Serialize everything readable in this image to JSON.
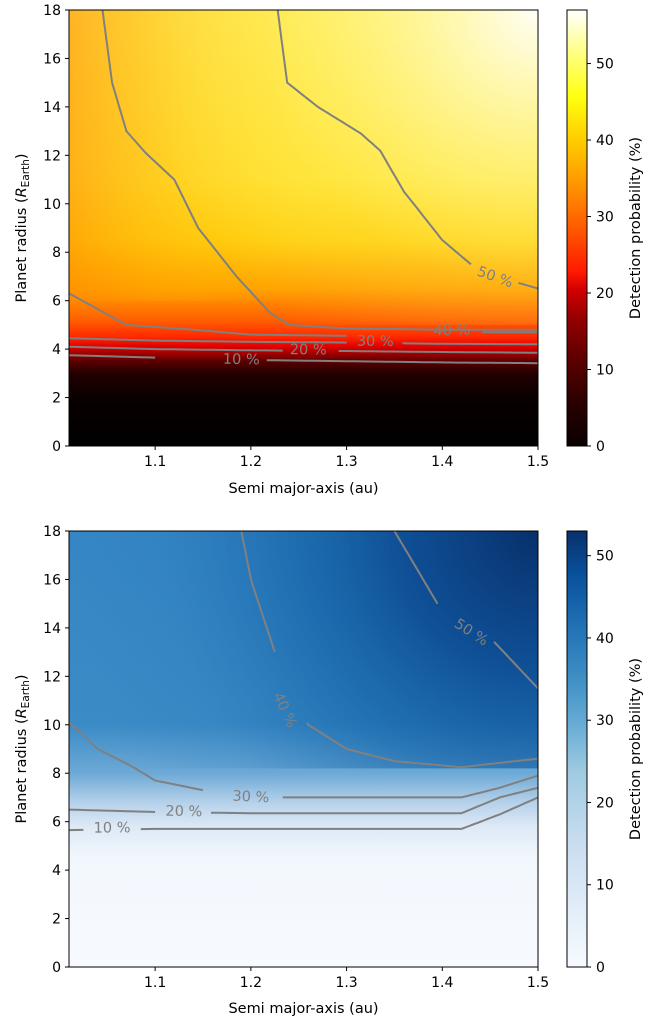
{
  "chart_data": [
    {
      "type": "heatmap",
      "colormap": "hot",
      "xlabel": "Semi major-axis (au)",
      "ylabel_main": "Planet radius (",
      "ylabel_sym": "R",
      "ylabel_sub": "Earth",
      "ylabel_end": ")",
      "xlim": [
        1.01,
        1.5
      ],
      "ylim": [
        0,
        18
      ],
      "xticks": [
        "1.1",
        "1.2",
        "1.3",
        "1.4",
        "1.5"
      ],
      "xtick_values": [
        1.1,
        1.2,
        1.3,
        1.4,
        1.5
      ],
      "yticks": [
        "0",
        "2",
        "4",
        "6",
        "8",
        "10",
        "12",
        "14",
        "16",
        "18"
      ],
      "ytick_values": [
        0,
        2,
        4,
        6,
        8,
        10,
        12,
        14,
        16,
        18
      ],
      "colorbar": {
        "label": "Detection probability (%)",
        "range": [
          0,
          57
        ],
        "ticks": [
          "0",
          "10",
          "20",
          "30",
          "40",
          "50"
        ],
        "tick_values": [
          0,
          10,
          20,
          30,
          40,
          50
        ]
      },
      "contour_color": "#808080",
      "contours": [
        {
          "level": "10 %",
          "points": [
            [
              1.01,
              3.75
            ],
            [
              1.1,
              3.65
            ],
            [
              1.2,
              3.55
            ],
            [
              1.3,
              3.5
            ],
            [
              1.4,
              3.45
            ],
            [
              1.5,
              3.42
            ]
          ],
          "label_at": [
            1.19,
            3.55
          ]
        },
        {
          "level": "20 %",
          "points": [
            [
              1.01,
              4.1
            ],
            [
              1.1,
              4.0
            ],
            [
              1.2,
              3.95
            ],
            [
              1.3,
              3.92
            ],
            [
              1.4,
              3.88
            ],
            [
              1.5,
              3.85
            ]
          ],
          "label_at": [
            1.26,
            3.95
          ]
        },
        {
          "level": "30 %",
          "points": [
            [
              1.01,
              4.45
            ],
            [
              1.1,
              4.35
            ],
            [
              1.2,
              4.3
            ],
            [
              1.3,
              4.27
            ],
            [
              1.4,
              4.22
            ],
            [
              1.5,
              4.2
            ]
          ],
          "label_at": [
            1.33,
            4.3
          ]
        },
        {
          "level": "40 %",
          "points": [
            [
              1.01,
              6.3
            ],
            [
              1.07,
              5.0
            ],
            [
              1.14,
              4.8
            ],
            [
              1.2,
              4.6
            ],
            [
              1.3,
              4.55
            ],
            [
              1.4,
              4.7
            ],
            [
              1.5,
              4.7
            ]
          ],
          "label_at": [
            1.41,
            4.75
          ]
        },
        {
          "level": "50 %",
          "points": [
            [
              1.045,
              18
            ],
            [
              1.055,
              15
            ],
            [
              1.07,
              13
            ],
            [
              1.09,
              12.1
            ],
            [
              1.12,
              11
            ],
            [
              1.145,
              9
            ],
            [
              1.185,
              7
            ],
            [
              1.22,
              5.5
            ],
            [
              1.24,
              5.0
            ],
            [
              1.3,
              4.85
            ],
            [
              1.4,
              4.8
            ],
            [
              1.5,
              4.8
            ]
          ]
        },
        {
          "level": "50 %",
          "points": [
            [
              1.228,
              18
            ],
            [
              1.238,
              15
            ],
            [
              1.27,
              14
            ],
            [
              1.315,
              12.9
            ],
            [
              1.335,
              12.2
            ],
            [
              1.36,
              10.5
            ],
            [
              1.4,
              8.5
            ],
            [
              1.43,
              7.5
            ],
            [
              1.465,
              6.9
            ],
            [
              1.5,
              6.5
            ]
          ],
          "label_at": [
            1.455,
            6.95
          ]
        }
      ]
    },
    {
      "type": "heatmap",
      "colormap": "Blues",
      "xlabel": "Semi major-axis (au)",
      "ylabel_main": "Planet radius (",
      "ylabel_sym": "R",
      "ylabel_sub": "Earth",
      "ylabel_end": ")",
      "xlim": [
        1.01,
        1.5
      ],
      "ylim": [
        0,
        18
      ],
      "xticks": [
        "1.1",
        "1.2",
        "1.3",
        "1.4",
        "1.5"
      ],
      "xtick_values": [
        1.1,
        1.2,
        1.3,
        1.4,
        1.5
      ],
      "yticks": [
        "0",
        "2",
        "4",
        "6",
        "8",
        "10",
        "12",
        "14",
        "16",
        "18"
      ],
      "ytick_values": [
        0,
        2,
        4,
        6,
        8,
        10,
        12,
        14,
        16,
        18
      ],
      "colorbar": {
        "label": "Detection probability (%)",
        "range": [
          0,
          53
        ],
        "ticks": [
          "0",
          "10",
          "20",
          "30",
          "40",
          "50"
        ],
        "tick_values": [
          0,
          10,
          20,
          30,
          40,
          50
        ]
      },
      "contour_color": "#808080",
      "contours": [
        {
          "level": "10 %",
          "points": [
            [
              1.01,
              5.65
            ],
            [
              1.1,
              5.7
            ],
            [
              1.2,
              5.7
            ],
            [
              1.3,
              5.7
            ],
            [
              1.42,
              5.7
            ],
            [
              1.46,
              6.3
            ],
            [
              1.5,
              7.0
            ]
          ],
          "label_at": [
            1.055,
            5.72
          ]
        },
        {
          "level": "20 %",
          "points": [
            [
              1.01,
              6.5
            ],
            [
              1.1,
              6.4
            ],
            [
              1.2,
              6.35
            ],
            [
              1.3,
              6.35
            ],
            [
              1.42,
              6.35
            ],
            [
              1.46,
              7.0
            ],
            [
              1.5,
              7.4
            ]
          ],
          "label_at": [
            1.13,
            6.4
          ]
        },
        {
          "level": "30 %",
          "points": [
            [
              1.01,
              10.1
            ],
            [
              1.04,
              9.0
            ],
            [
              1.075,
              8.3
            ],
            [
              1.1,
              7.7
            ],
            [
              1.15,
              7.3
            ],
            [
              1.2,
              7.0
            ],
            [
              1.3,
              7.0
            ],
            [
              1.42,
              7.0
            ],
            [
              1.46,
              7.4
            ],
            [
              1.5,
              7.9
            ]
          ],
          "label_at": [
            1.2,
            7.0
          ]
        },
        {
          "level": "40 %",
          "points": [
            [
              1.19,
              18
            ],
            [
              1.2,
              16
            ],
            [
              1.21,
              14.8
            ],
            [
              1.225,
              13
            ],
            [
              1.245,
              11
            ],
            [
              1.26,
              10.0
            ],
            [
              1.3,
              9.0
            ],
            [
              1.35,
              8.5
            ],
            [
              1.42,
              8.25
            ],
            [
              1.5,
              8.6
            ]
          ],
          "label_at": [
            1.235,
            10.6
          ]
        },
        {
          "level": "50 %",
          "points": [
            [
              1.35,
              18
            ],
            [
              1.365,
              17
            ],
            [
              1.395,
              15
            ],
            [
              1.42,
              14.2
            ],
            [
              1.45,
              13.6
            ],
            [
              1.5,
              11.5
            ]
          ],
          "label_at": [
            1.43,
            13.8
          ]
        }
      ]
    }
  ]
}
